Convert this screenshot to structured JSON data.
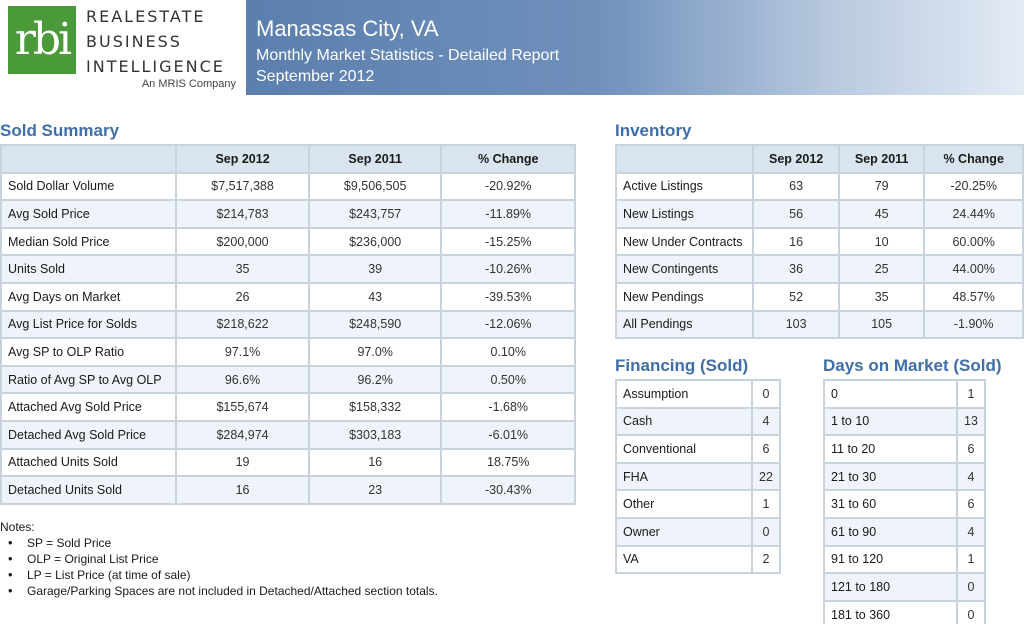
{
  "logo": {
    "mark": "rbi",
    "lines": [
      "REALESTATE",
      "BUSINESS",
      "INTELLIGENCE"
    ],
    "sub": "An MRIS Company"
  },
  "header": {
    "title": "Manassas City, VA",
    "subtitle": "Monthly Market Statistics - Detailed Report",
    "period": "September 2012"
  },
  "sold_summary": {
    "title": "Sold Summary",
    "columns": [
      "",
      "Sep 2012",
      "Sep 2011",
      "% Change"
    ],
    "rows": [
      [
        "Sold Dollar Volume",
        "$7,517,388",
        "$9,506,505",
        "-20.92%"
      ],
      [
        "Avg Sold Price",
        "$214,783",
        "$243,757",
        "-11.89%"
      ],
      [
        "Median Sold Price",
        "$200,000",
        "$236,000",
        "-15.25%"
      ],
      [
        "Units Sold",
        "35",
        "39",
        "-10.26%"
      ],
      [
        "Avg Days on Market",
        "26",
        "43",
        "-39.53%"
      ],
      [
        "Avg List Price for Solds",
        "$218,622",
        "$248,590",
        "-12.06%"
      ],
      [
        "Avg SP to OLP Ratio",
        "97.1%",
        "97.0%",
        "0.10%"
      ],
      [
        "Ratio of Avg SP to Avg OLP",
        "96.6%",
        "96.2%",
        "0.50%"
      ],
      [
        "Attached Avg Sold Price",
        "$155,674",
        "$158,332",
        "-1.68%"
      ],
      [
        "Detached Avg Sold Price",
        "$284,974",
        "$303,183",
        "-6.01%"
      ],
      [
        "Attached Units Sold",
        "19",
        "16",
        "18.75%"
      ],
      [
        "Detached Units Sold",
        "16",
        "23",
        "-30.43%"
      ]
    ]
  },
  "inventory": {
    "title": "Inventory",
    "columns": [
      "",
      "Sep 2012",
      "Sep 2011",
      "% Change"
    ],
    "rows": [
      [
        "Active Listings",
        "63",
        "79",
        "-20.25%"
      ],
      [
        "New Listings",
        "56",
        "45",
        "24.44%"
      ],
      [
        "New Under Contracts",
        "16",
        "10",
        "60.00%"
      ],
      [
        "New Contingents",
        "36",
        "25",
        "44.00%"
      ],
      [
        "New Pendings",
        "52",
        "35",
        "48.57%"
      ],
      [
        "All Pendings",
        "103",
        "105",
        "-1.90%"
      ]
    ]
  },
  "financing": {
    "title": "Financing (Sold)",
    "rows": [
      [
        "Assumption",
        "0"
      ],
      [
        "Cash",
        "4"
      ],
      [
        "Conventional",
        "6"
      ],
      [
        "FHA",
        "22"
      ],
      [
        "Other",
        "1"
      ],
      [
        "Owner",
        "0"
      ],
      [
        "VA",
        "2"
      ]
    ]
  },
  "days_on_market": {
    "title": "Days on Market (Sold)",
    "rows": [
      [
        "0",
        "1"
      ],
      [
        "1 to 10",
        "13"
      ],
      [
        "11 to 20",
        "6"
      ],
      [
        "21 to 30",
        "4"
      ],
      [
        "31 to 60",
        "6"
      ],
      [
        "61 to 90",
        "4"
      ],
      [
        "91 to 120",
        "1"
      ],
      [
        "121 to 180",
        "0"
      ],
      [
        "181 to 360",
        "0"
      ]
    ]
  },
  "notes": {
    "heading": "Notes:",
    "items": [
      "SP = Sold Price",
      "OLP = Original List Price",
      "LP = List Price (at time of sale)",
      "Garage/Parking Spaces are not included in Detached/Attached section totals."
    ]
  }
}
